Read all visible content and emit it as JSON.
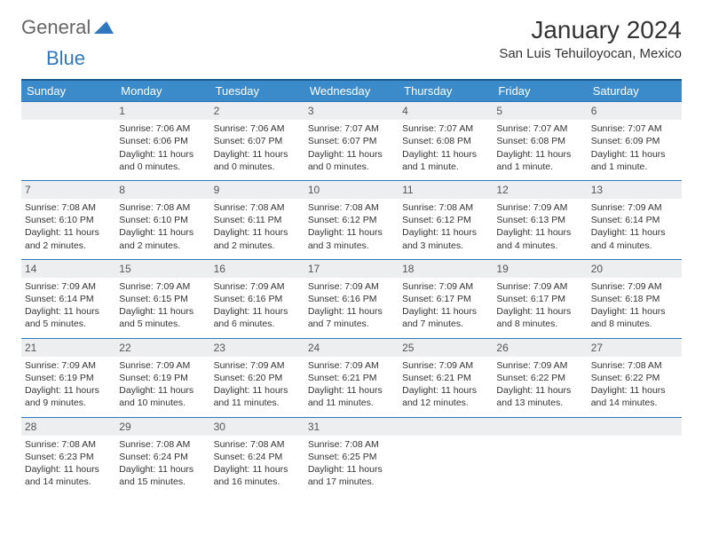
{
  "logo": {
    "general": "General",
    "blue": "Blue"
  },
  "title": "January 2024",
  "location": "San Luis Tehuiloyocan, Mexico",
  "weekdays": [
    "Sunday",
    "Monday",
    "Tuesday",
    "Wednesday",
    "Thursday",
    "Friday",
    "Saturday"
  ],
  "colors": {
    "header_bg": "#3b8bca",
    "header_border": "#1f5a8e",
    "row_border": "#2f78bf",
    "daynum_bg": "#eceeef",
    "text": "#333333",
    "logo_blue": "#2f78bf"
  },
  "fonts": {
    "title_size": 28,
    "location_size": 15,
    "weekday_size": 13,
    "cell_size": 10.5,
    "daynum_size": 12,
    "logo_size": 22
  },
  "weeks": [
    [
      {
        "num": "",
        "sunrise": "",
        "sunset": "",
        "daylight": ""
      },
      {
        "num": "1",
        "sunrise": "Sunrise: 7:06 AM",
        "sunset": "Sunset: 6:06 PM",
        "daylight": "Daylight: 11 hours and 0 minutes."
      },
      {
        "num": "2",
        "sunrise": "Sunrise: 7:06 AM",
        "sunset": "Sunset: 6:07 PM",
        "daylight": "Daylight: 11 hours and 0 minutes."
      },
      {
        "num": "3",
        "sunrise": "Sunrise: 7:07 AM",
        "sunset": "Sunset: 6:07 PM",
        "daylight": "Daylight: 11 hours and 0 minutes."
      },
      {
        "num": "4",
        "sunrise": "Sunrise: 7:07 AM",
        "sunset": "Sunset: 6:08 PM",
        "daylight": "Daylight: 11 hours and 1 minute."
      },
      {
        "num": "5",
        "sunrise": "Sunrise: 7:07 AM",
        "sunset": "Sunset: 6:08 PM",
        "daylight": "Daylight: 11 hours and 1 minute."
      },
      {
        "num": "6",
        "sunrise": "Sunrise: 7:07 AM",
        "sunset": "Sunset: 6:09 PM",
        "daylight": "Daylight: 11 hours and 1 minute."
      }
    ],
    [
      {
        "num": "7",
        "sunrise": "Sunrise: 7:08 AM",
        "sunset": "Sunset: 6:10 PM",
        "daylight": "Daylight: 11 hours and 2 minutes."
      },
      {
        "num": "8",
        "sunrise": "Sunrise: 7:08 AM",
        "sunset": "Sunset: 6:10 PM",
        "daylight": "Daylight: 11 hours and 2 minutes."
      },
      {
        "num": "9",
        "sunrise": "Sunrise: 7:08 AM",
        "sunset": "Sunset: 6:11 PM",
        "daylight": "Daylight: 11 hours and 2 minutes."
      },
      {
        "num": "10",
        "sunrise": "Sunrise: 7:08 AM",
        "sunset": "Sunset: 6:12 PM",
        "daylight": "Daylight: 11 hours and 3 minutes."
      },
      {
        "num": "11",
        "sunrise": "Sunrise: 7:08 AM",
        "sunset": "Sunset: 6:12 PM",
        "daylight": "Daylight: 11 hours and 3 minutes."
      },
      {
        "num": "12",
        "sunrise": "Sunrise: 7:09 AM",
        "sunset": "Sunset: 6:13 PM",
        "daylight": "Daylight: 11 hours and 4 minutes."
      },
      {
        "num": "13",
        "sunrise": "Sunrise: 7:09 AM",
        "sunset": "Sunset: 6:14 PM",
        "daylight": "Daylight: 11 hours and 4 minutes."
      }
    ],
    [
      {
        "num": "14",
        "sunrise": "Sunrise: 7:09 AM",
        "sunset": "Sunset: 6:14 PM",
        "daylight": "Daylight: 11 hours and 5 minutes."
      },
      {
        "num": "15",
        "sunrise": "Sunrise: 7:09 AM",
        "sunset": "Sunset: 6:15 PM",
        "daylight": "Daylight: 11 hours and 5 minutes."
      },
      {
        "num": "16",
        "sunrise": "Sunrise: 7:09 AM",
        "sunset": "Sunset: 6:16 PM",
        "daylight": "Daylight: 11 hours and 6 minutes."
      },
      {
        "num": "17",
        "sunrise": "Sunrise: 7:09 AM",
        "sunset": "Sunset: 6:16 PM",
        "daylight": "Daylight: 11 hours and 7 minutes."
      },
      {
        "num": "18",
        "sunrise": "Sunrise: 7:09 AM",
        "sunset": "Sunset: 6:17 PM",
        "daylight": "Daylight: 11 hours and 7 minutes."
      },
      {
        "num": "19",
        "sunrise": "Sunrise: 7:09 AM",
        "sunset": "Sunset: 6:17 PM",
        "daylight": "Daylight: 11 hours and 8 minutes."
      },
      {
        "num": "20",
        "sunrise": "Sunrise: 7:09 AM",
        "sunset": "Sunset: 6:18 PM",
        "daylight": "Daylight: 11 hours and 8 minutes."
      }
    ],
    [
      {
        "num": "21",
        "sunrise": "Sunrise: 7:09 AM",
        "sunset": "Sunset: 6:19 PM",
        "daylight": "Daylight: 11 hours and 9 minutes."
      },
      {
        "num": "22",
        "sunrise": "Sunrise: 7:09 AM",
        "sunset": "Sunset: 6:19 PM",
        "daylight": "Daylight: 11 hours and 10 minutes."
      },
      {
        "num": "23",
        "sunrise": "Sunrise: 7:09 AM",
        "sunset": "Sunset: 6:20 PM",
        "daylight": "Daylight: 11 hours and 11 minutes."
      },
      {
        "num": "24",
        "sunrise": "Sunrise: 7:09 AM",
        "sunset": "Sunset: 6:21 PM",
        "daylight": "Daylight: 11 hours and 11 minutes."
      },
      {
        "num": "25",
        "sunrise": "Sunrise: 7:09 AM",
        "sunset": "Sunset: 6:21 PM",
        "daylight": "Daylight: 11 hours and 12 minutes."
      },
      {
        "num": "26",
        "sunrise": "Sunrise: 7:09 AM",
        "sunset": "Sunset: 6:22 PM",
        "daylight": "Daylight: 11 hours and 13 minutes."
      },
      {
        "num": "27",
        "sunrise": "Sunrise: 7:08 AM",
        "sunset": "Sunset: 6:22 PM",
        "daylight": "Daylight: 11 hours and 14 minutes."
      }
    ],
    [
      {
        "num": "28",
        "sunrise": "Sunrise: 7:08 AM",
        "sunset": "Sunset: 6:23 PM",
        "daylight": "Daylight: 11 hours and 14 minutes."
      },
      {
        "num": "29",
        "sunrise": "Sunrise: 7:08 AM",
        "sunset": "Sunset: 6:24 PM",
        "daylight": "Daylight: 11 hours and 15 minutes."
      },
      {
        "num": "30",
        "sunrise": "Sunrise: 7:08 AM",
        "sunset": "Sunset: 6:24 PM",
        "daylight": "Daylight: 11 hours and 16 minutes."
      },
      {
        "num": "31",
        "sunrise": "Sunrise: 7:08 AM",
        "sunset": "Sunset: 6:25 PM",
        "daylight": "Daylight: 11 hours and 17 minutes."
      },
      {
        "num": "",
        "sunrise": "",
        "sunset": "",
        "daylight": ""
      },
      {
        "num": "",
        "sunrise": "",
        "sunset": "",
        "daylight": ""
      },
      {
        "num": "",
        "sunrise": "",
        "sunset": "",
        "daylight": ""
      }
    ]
  ]
}
